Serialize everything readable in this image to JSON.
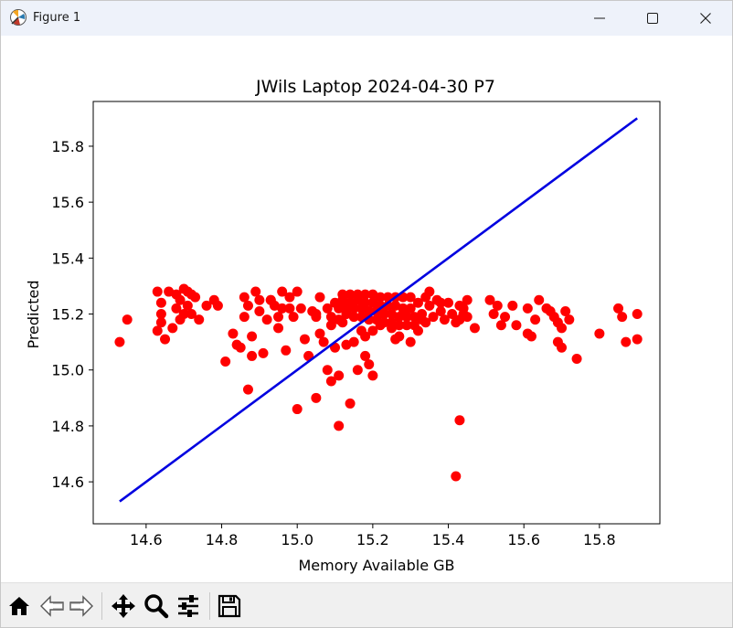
{
  "window": {
    "title": "Figure 1",
    "icons": {
      "app": "matplotlib-figure-icon",
      "minimize": "minimize-icon",
      "maximize": "maximize-icon",
      "close": "close-icon"
    }
  },
  "toolbar": {
    "buttons": [
      {
        "name": "home-button",
        "icon": "home-icon"
      },
      {
        "name": "back-button",
        "icon": "back-arrow-icon"
      },
      {
        "name": "forward-button",
        "icon": "forward-arrow-icon"
      },
      {
        "name": "pan-button",
        "icon": "move-icon"
      },
      {
        "name": "zoom-button",
        "icon": "magnifier-icon"
      },
      {
        "name": "configure-subplots-button",
        "icon": "sliders-icon"
      },
      {
        "name": "save-button",
        "icon": "floppy-disk-icon"
      }
    ]
  },
  "chart_data": {
    "type": "scatter",
    "title": "JWils Laptop 2024-04-30 P7",
    "xlabel": "Memory Available GB",
    "ylabel": "Predicted",
    "xlim": [
      14.46,
      15.96
    ],
    "ylim": [
      14.45,
      15.96
    ],
    "xticks": [
      "14.6",
      "14.8",
      "15.0",
      "15.2",
      "15.4",
      "15.6",
      "15.8"
    ],
    "xtick_values": [
      14.6,
      14.8,
      15.0,
      15.2,
      15.4,
      15.6,
      15.8
    ],
    "yticks": [
      "14.6",
      "14.8",
      "15.0",
      "15.2",
      "15.4",
      "15.6",
      "15.8"
    ],
    "ytick_values": [
      14.6,
      14.8,
      15.0,
      15.2,
      15.4,
      15.6,
      15.8
    ],
    "grid": false,
    "colors": {
      "points": "#ff0000",
      "line": "#0000e0"
    },
    "line": {
      "x": [
        14.53,
        15.9
      ],
      "y": [
        14.53,
        15.9
      ]
    },
    "points": [
      [
        14.53,
        15.1
      ],
      [
        14.55,
        15.18
      ],
      [
        14.63,
        15.28
      ],
      [
        14.63,
        15.14
      ],
      [
        14.64,
        15.24
      ],
      [
        14.64,
        15.2
      ],
      [
        14.64,
        15.17
      ],
      [
        14.65,
        15.11
      ],
      [
        14.66,
        15.28
      ],
      [
        14.67,
        15.15
      ],
      [
        14.68,
        15.27
      ],
      [
        14.68,
        15.22
      ],
      [
        14.69,
        15.25
      ],
      [
        14.69,
        15.18
      ],
      [
        14.7,
        15.29
      ],
      [
        14.7,
        15.2
      ],
      [
        14.71,
        15.28
      ],
      [
        14.71,
        15.23
      ],
      [
        14.72,
        15.27
      ],
      [
        14.72,
        15.2
      ],
      [
        14.73,
        15.26
      ],
      [
        14.74,
        15.18
      ],
      [
        14.76,
        15.23
      ],
      [
        14.78,
        15.25
      ],
      [
        14.79,
        15.23
      ],
      [
        14.81,
        15.03
      ],
      [
        14.83,
        15.13
      ],
      [
        14.84,
        15.09
      ],
      [
        14.85,
        15.08
      ],
      [
        14.86,
        15.26
      ],
      [
        14.86,
        15.19
      ],
      [
        14.87,
        15.23
      ],
      [
        14.87,
        14.93
      ],
      [
        14.88,
        15.12
      ],
      [
        14.88,
        15.05
      ],
      [
        14.89,
        15.28
      ],
      [
        14.9,
        15.21
      ],
      [
        14.9,
        15.25
      ],
      [
        14.91,
        15.06
      ],
      [
        14.92,
        15.18
      ],
      [
        14.93,
        15.25
      ],
      [
        14.94,
        15.23
      ],
      [
        14.95,
        15.19
      ],
      [
        14.96,
        15.28
      ],
      [
        14.96,
        15.22
      ],
      [
        14.97,
        15.07
      ],
      [
        14.98,
        15.26
      ],
      [
        14.99,
        15.19
      ],
      [
        15.0,
        15.28
      ],
      [
        15.01,
        15.22
      ],
      [
        15.02,
        15.11
      ],
      [
        15.03,
        15.05
      ],
      [
        15.04,
        15.21
      ],
      [
        15.05,
        15.19
      ],
      [
        15.05,
        15.2
      ],
      [
        15.06,
        15.26
      ],
      [
        15.07,
        15.1
      ],
      [
        15.08,
        15.22
      ],
      [
        15.09,
        15.19
      ],
      [
        15.09,
        15.16
      ],
      [
        15.1,
        15.08
      ],
      [
        15.1,
        15.24
      ],
      [
        15.11,
        15.22
      ],
      [
        15.11,
        15.18
      ],
      [
        15.12,
        15.27
      ],
      [
        15.12,
        15.25
      ],
      [
        15.13,
        15.23
      ],
      [
        15.13,
        15.2
      ],
      [
        15.14,
        15.27
      ],
      [
        15.14,
        15.24
      ],
      [
        15.15,
        15.22
      ],
      [
        15.15,
        15.19
      ],
      [
        15.16,
        15.27
      ],
      [
        15.16,
        15.25
      ],
      [
        15.17,
        15.22
      ],
      [
        15.17,
        15.19
      ],
      [
        15.18,
        15.27
      ],
      [
        15.18,
        15.24
      ],
      [
        15.19,
        15.21
      ],
      [
        15.19,
        15.18
      ],
      [
        15.2,
        15.27
      ],
      [
        15.2,
        15.24
      ],
      [
        15.21,
        15.21
      ],
      [
        15.21,
        15.18
      ],
      [
        15.22,
        15.26
      ],
      [
        15.22,
        15.23
      ],
      [
        15.23,
        15.2
      ],
      [
        15.23,
        15.17
      ],
      [
        15.24,
        15.26
      ],
      [
        15.24,
        15.23
      ],
      [
        15.25,
        15.2
      ],
      [
        15.25,
        15.17
      ],
      [
        15.26,
        15.26
      ],
      [
        15.26,
        15.23
      ],
      [
        15.27,
        15.19
      ],
      [
        15.27,
        15.16
      ],
      [
        15.28,
        15.26
      ],
      [
        15.28,
        15.22
      ],
      [
        15.29,
        15.19
      ],
      [
        15.29,
        15.16
      ],
      [
        15.3,
        15.26
      ],
      [
        15.3,
        15.22
      ],
      [
        15.31,
        15.19
      ],
      [
        15.31,
        15.16
      ],
      [
        15.32,
        15.24
      ],
      [
        15.33,
        15.2
      ],
      [
        15.34,
        15.17
      ],
      [
        15.35,
        15.23
      ],
      [
        15.36,
        15.19
      ],
      [
        15.37,
        15.25
      ],
      [
        15.38,
        15.21
      ],
      [
        15.39,
        15.18
      ],
      [
        15.4,
        15.24
      ],
      [
        15.41,
        15.2
      ],
      [
        15.42,
        15.17
      ],
      [
        15.43,
        15.23
      ],
      [
        15.44,
        15.2
      ],
      [
        15.45,
        15.19
      ],
      [
        15.3,
        15.1
      ],
      [
        15.27,
        15.12
      ],
      [
        15.33,
        15.18
      ],
      [
        15.25,
        15.15
      ],
      [
        15.22,
        15.16
      ],
      [
        15.2,
        15.14
      ],
      [
        15.18,
        15.12
      ],
      [
        15.15,
        15.1
      ],
      [
        15.13,
        15.09
      ],
      [
        15.17,
        15.14
      ],
      [
        15.08,
        15.0
      ],
      [
        15.09,
        14.96
      ],
      [
        15.11,
        14.98
      ],
      [
        15.16,
        15.0
      ],
      [
        15.19,
        15.02
      ],
      [
        15.18,
        15.05
      ],
      [
        15.2,
        14.98
      ],
      [
        15.05,
        14.9
      ],
      [
        15.0,
        14.86
      ],
      [
        15.14,
        14.88
      ],
      [
        15.11,
        14.8
      ],
      [
        15.43,
        14.82
      ],
      [
        15.42,
        14.62
      ],
      [
        15.45,
        15.25
      ],
      [
        15.44,
        15.22
      ],
      [
        15.43,
        15.18
      ],
      [
        15.47,
        15.15
      ],
      [
        15.51,
        15.25
      ],
      [
        15.52,
        15.2
      ],
      [
        15.53,
        15.23
      ],
      [
        15.54,
        15.16
      ],
      [
        15.55,
        15.19
      ],
      [
        15.57,
        15.23
      ],
      [
        15.58,
        15.16
      ],
      [
        15.61,
        15.22
      ],
      [
        15.61,
        15.13
      ],
      [
        15.62,
        15.12
      ],
      [
        15.63,
        15.18
      ],
      [
        15.64,
        15.25
      ],
      [
        15.66,
        15.22
      ],
      [
        15.67,
        15.21
      ],
      [
        15.68,
        15.19
      ],
      [
        15.69,
        15.17
      ],
      [
        15.69,
        15.1
      ],
      [
        15.7,
        15.08
      ],
      [
        15.7,
        15.15
      ],
      [
        15.71,
        15.21
      ],
      [
        15.72,
        15.18
      ],
      [
        15.74,
        15.04
      ],
      [
        15.8,
        15.13
      ],
      [
        15.85,
        15.22
      ],
      [
        15.86,
        15.19
      ],
      [
        15.87,
        15.1
      ],
      [
        15.9,
        15.2
      ],
      [
        15.9,
        15.11
      ],
      [
        14.98,
        15.22
      ],
      [
        14.95,
        15.15
      ],
      [
        14.93,
        15.25
      ],
      [
        15.06,
        15.13
      ],
      [
        15.12,
        15.17
      ],
      [
        15.35,
        15.28
      ],
      [
        15.34,
        15.26
      ],
      [
        15.38,
        15.24
      ],
      [
        15.32,
        15.14
      ],
      [
        15.28,
        15.2
      ],
      [
        15.26,
        15.11
      ]
    ]
  }
}
